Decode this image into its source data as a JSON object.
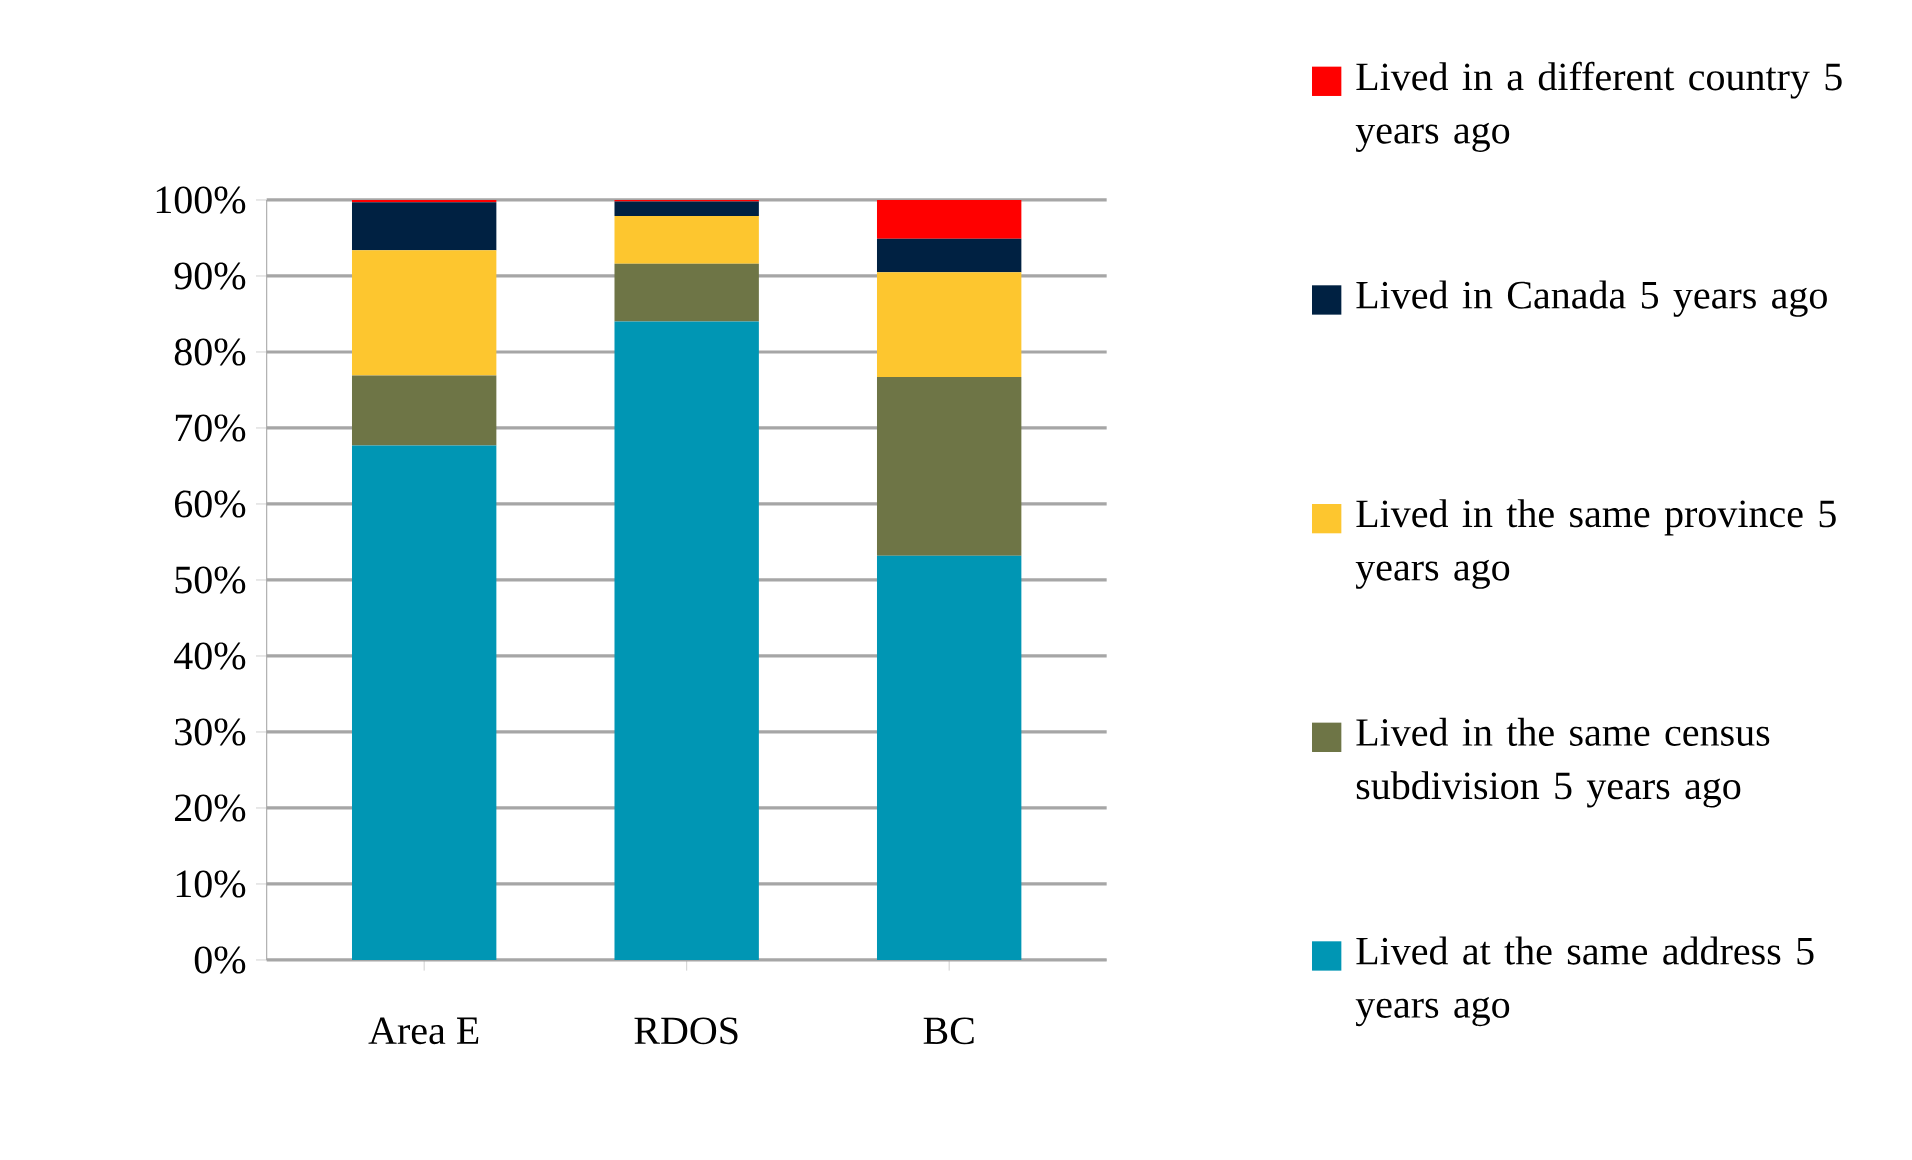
{
  "chart_data": {
    "type": "bar",
    "stacked": true,
    "categories": [
      "Area E",
      "RDOS",
      "BC"
    ],
    "series": [
      {
        "name": "Lived at the same address 5 years ago",
        "color": "#0096b4",
        "values": [
          67.7,
          84.0,
          53.2
        ]
      },
      {
        "name": "Lived in the same census subdivision 5 years ago",
        "color": "#6e7546",
        "values": [
          9.2,
          7.6,
          23.5
        ]
      },
      {
        "name": "Lived in the same province 5 years ago",
        "color": "#fdc62f",
        "values": [
          16.5,
          6.3,
          13.8
        ]
      },
      {
        "name": "Lived in Canada 5 years ago",
        "color": "#002142",
        "values": [
          6.3,
          1.9,
          4.4
        ]
      },
      {
        "name": "Lived in a different country 5 years ago",
        "color": "#ff0000",
        "values": [
          0.3,
          0.2,
          5.1
        ]
      }
    ],
    "ylim": [
      0,
      100
    ],
    "yticks": [
      {
        "value": 0,
        "label": "0%"
      },
      {
        "value": 10,
        "label": "10%"
      },
      {
        "value": 20,
        "label": "20%"
      },
      {
        "value": 30,
        "label": "30%"
      },
      {
        "value": 40,
        "label": "40%"
      },
      {
        "value": 50,
        "label": "50%"
      },
      {
        "value": 60,
        "label": "60%"
      },
      {
        "value": 70,
        "label": "70%"
      },
      {
        "value": 80,
        "label": "80%"
      },
      {
        "value": 90,
        "label": "90%"
      },
      {
        "value": 100,
        "label": "100%"
      }
    ],
    "grid": "y",
    "legend": "right"
  }
}
